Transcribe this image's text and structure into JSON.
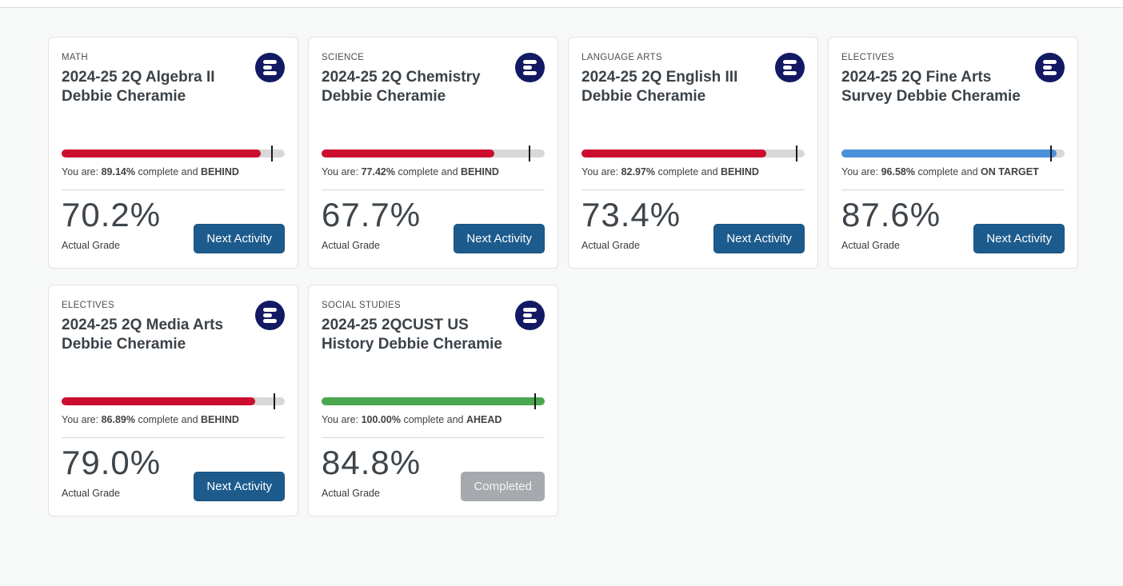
{
  "labels": {
    "you_are": "You are:",
    "complete_and": "complete and",
    "actual_grade": "Actual Grade"
  },
  "colors": {
    "behind_red": "#cb0e2f",
    "on_target_blue": "#4a90d9",
    "ahead_green": "#4aa64f",
    "track_gray": "#d8d8d8",
    "primary_button_blue": "#1d5b8c",
    "completed_button_gray": "#a6a9ad",
    "logo_navy": "#131a63"
  },
  "cards": [
    {
      "category": "MATH",
      "title": "2024-25 2Q Algebra II Debbie Cheramie",
      "complete_pct_label": "89.14%",
      "complete_value": 89.14,
      "target_value": 94,
      "status": "BEHIND",
      "bar_color": "#cb0e2f",
      "grade": "70.2%",
      "action_label": "Next Activity",
      "action_state": "enabled"
    },
    {
      "category": "SCIENCE",
      "title": "2024-25 2Q Chemistry Debbie Cheramie",
      "complete_pct_label": "77.42%",
      "complete_value": 77.42,
      "target_value": 93,
      "status": "BEHIND",
      "bar_color": "#cb0e2f",
      "grade": "67.7%",
      "action_label": "Next Activity",
      "action_state": "enabled"
    },
    {
      "category": "LANGUAGE ARTS",
      "title": "2024-25 2Q English III Debbie Cheramie",
      "complete_pct_label": "82.97%",
      "complete_value": 82.97,
      "target_value": 96,
      "status": "BEHIND",
      "bar_color": "#cb0e2f",
      "grade": "73.4%",
      "action_label": "Next Activity",
      "action_state": "enabled"
    },
    {
      "category": "ELECTIVES",
      "title": "2024-25 2Q Fine Arts Survey Debbie Cheramie",
      "complete_pct_label": "96.58%",
      "complete_value": 96.58,
      "target_value": 93.5,
      "status": "ON TARGET",
      "bar_color": "#4a90d9",
      "grade": "87.6%",
      "action_label": "Next Activity",
      "action_state": "enabled"
    },
    {
      "category": "ELECTIVES",
      "title": "2024-25 2Q Media Arts Debbie Cheramie",
      "complete_pct_label": "86.89%",
      "complete_value": 86.89,
      "target_value": 95,
      "status": "BEHIND",
      "bar_color": "#cb0e2f",
      "grade": "79.0%",
      "action_label": "Next Activity",
      "action_state": "enabled"
    },
    {
      "category": "SOCIAL STUDIES",
      "title": "2024-25 2QCUST US History Debbie Cheramie",
      "complete_pct_label": "100.00%",
      "complete_value": 100,
      "target_value": 95.3,
      "status": "AHEAD",
      "bar_color": "#4aa64f",
      "grade": "84.8%",
      "action_label": "Completed",
      "action_state": "disabled"
    }
  ]
}
